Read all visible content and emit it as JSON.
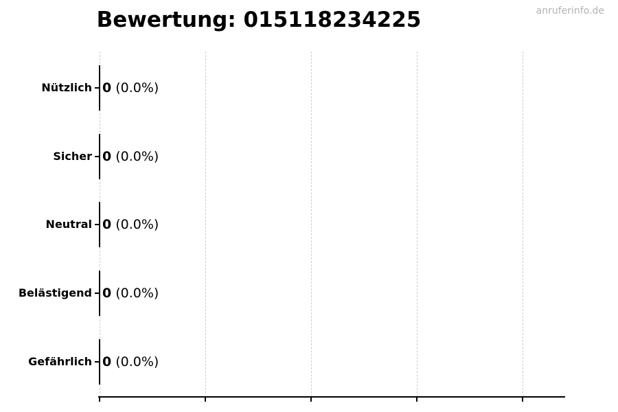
{
  "title": "Bewertung: 015118234225",
  "watermark": "anruferinfo.de",
  "colors": {
    "background": "#ffffff",
    "text": "#000000",
    "gridline": "#cccccc",
    "watermark": "#b3b3b3",
    "axis": "#000000"
  },
  "chart_data": {
    "type": "bar",
    "orientation": "horizontal",
    "title": "Bewertung: 015118234225",
    "categories": [
      "Nützlich",
      "Sicher",
      "Neutral",
      "Belästigend",
      "Gefährlich"
    ],
    "values": [
      0,
      0,
      0,
      0,
      0
    ],
    "percentages": [
      0.0,
      0.0,
      0.0,
      0.0,
      0.0
    ],
    "rows": [
      {
        "category": "Nützlich",
        "count": "0",
        "percent_label": "(0.0%)"
      },
      {
        "category": "Sicher",
        "count": "0",
        "percent_label": "(0.0%)"
      },
      {
        "category": "Neutral",
        "count": "0",
        "percent_label": "(0.0%)"
      },
      {
        "category": "Belästigend",
        "count": "0",
        "percent_label": "(0.0%)"
      },
      {
        "category": "Gefährlich",
        "count": "0",
        "percent_label": "(0.0%)"
      }
    ],
    "xlabel": "",
    "ylabel": "",
    "x_tick_labels": [],
    "x_gridline_count": 5,
    "grid": "vertical dashed",
    "legend": "none"
  }
}
